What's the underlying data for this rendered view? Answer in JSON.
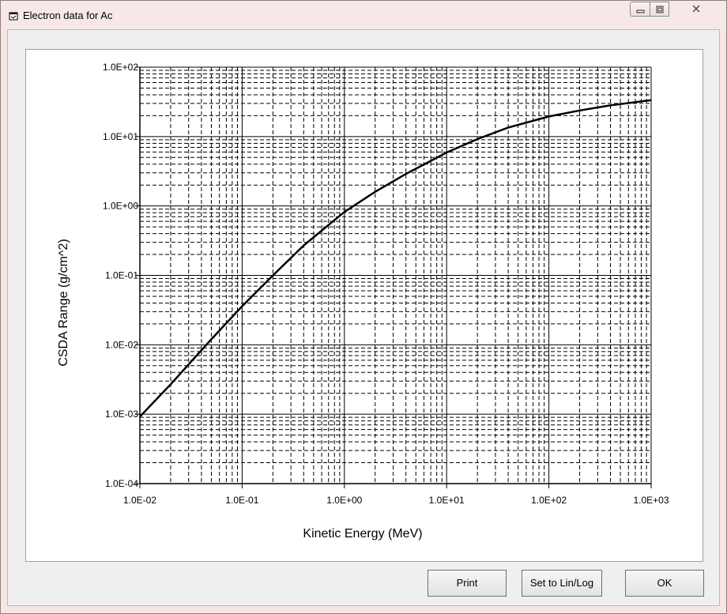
{
  "window": {
    "title": "Electron data for Ac"
  },
  "buttons": {
    "print": "Print",
    "linlog": "Set to Lin/Log",
    "ok": "OK"
  },
  "chart_data": {
    "type": "line",
    "xlabel": "Kinetic Energy (MeV)",
    "ylabel": "CSDA Range (g/cm^2)",
    "xscale": "log",
    "yscale": "log",
    "xlim": [
      0.01,
      1000
    ],
    "ylim": [
      0.0001,
      100
    ],
    "grid": true,
    "xticks": [
      "1.0E-02",
      "1.0E-01",
      "1.0E+00",
      "1.0E+01",
      "1.0E+02",
      "1.0E+03"
    ],
    "yticks": [
      "1.0E+02",
      "1.0E+01",
      "1.0E+00",
      "1.0E-01",
      "1.0E-02",
      "1.0E-03",
      "1.0E-04"
    ],
    "series": [
      {
        "x": [
          0.01,
          0.02,
          0.05,
          0.1,
          0.2,
          0.4,
          1,
          2,
          4,
          10,
          20,
          40,
          100,
          200,
          400,
          1000
        ],
        "y": [
          0.00092,
          0.0027,
          0.012,
          0.036,
          0.1,
          0.27,
          0.82,
          1.6,
          2.9,
          5.9,
          9.2,
          13.5,
          19.5,
          23.8,
          28.2,
          33.5
        ]
      }
    ]
  }
}
